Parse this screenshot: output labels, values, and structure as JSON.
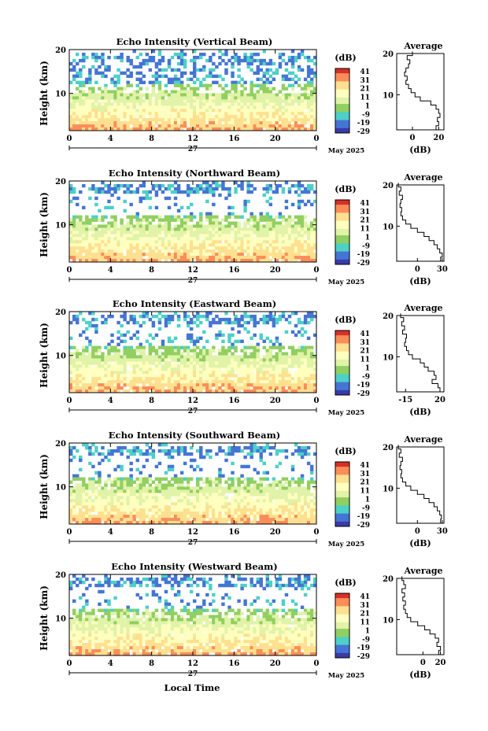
{
  "figure": {
    "footer_xlabel": "Local Time",
    "month_label": "May 2025",
    "day_label": "27",
    "colorbar_unit": "(dB)",
    "colorbar_ticks": [
      "41",
      "31",
      "21",
      "11",
      "1",
      "-9",
      "-19",
      "-29"
    ],
    "colorbar_colors": [
      "#d73027",
      "#fc8d59",
      "#fee090",
      "#ffffbf",
      "#e0f3a8",
      "#91cf60",
      "#4dd0c8",
      "#4575d4",
      "#3a3aa8"
    ],
    "height_label": "Height (km)",
    "avg_title": "Average",
    "avg_xlabel": "(dB)"
  },
  "chart_data": [
    {
      "type": "heatmap",
      "title": "Echo Intensity (Vertical Beam)",
      "ylabel": "Height (km)",
      "x_ticks": [
        "0",
        "4",
        "8",
        "12",
        "16",
        "20",
        "0"
      ],
      "xlim": [
        0,
        24
      ],
      "ylim": [
        1.5,
        20
      ],
      "y_ticks": [
        "20",
        "10"
      ],
      "colorbar_range_dB": [
        -29,
        41
      ],
      "average_profile": {
        "x_ticks": [
          "0",
          "20"
        ],
        "xlim": [
          -12,
          24
        ],
        "heights_km": [
          2,
          3,
          4,
          5,
          6,
          7,
          8,
          9,
          10,
          11,
          12,
          13,
          14,
          15,
          16,
          17,
          18,
          19,
          20
        ],
        "values_dB": [
          18,
          20,
          19,
          21,
          20,
          18,
          14,
          6,
          2,
          -1,
          -3,
          -5,
          -4,
          -6,
          -5,
          -3,
          -2,
          -4,
          0
        ]
      }
    },
    {
      "type": "heatmap",
      "title": "Echo Intensity (Northward Beam)",
      "ylabel": "Height (km)",
      "x_ticks": [
        "0",
        "4",
        "8",
        "12",
        "16",
        "20",
        "0"
      ],
      "xlim": [
        0,
        24
      ],
      "ylim": [
        1.5,
        20
      ],
      "y_ticks": [
        "20",
        "10"
      ],
      "colorbar_range_dB": [
        -29,
        41
      ],
      "average_profile": {
        "x_ticks": [
          "0",
          "30"
        ],
        "xlim": [
          -25,
          32
        ],
        "heights_km": [
          2,
          3,
          4,
          5,
          6,
          7,
          8,
          9,
          10,
          11,
          12,
          13,
          14,
          15,
          16,
          17,
          18,
          19,
          20
        ],
        "values_dB": [
          28,
          30,
          27,
          24,
          20,
          14,
          8,
          0,
          -8,
          -14,
          -18,
          -20,
          -19,
          -21,
          -20,
          -18,
          -22,
          -20,
          -23
        ]
      }
    },
    {
      "type": "heatmap",
      "title": "Echo Intensity (Eastward Beam)",
      "ylabel": "Height (km)",
      "x_ticks": [
        "0",
        "4",
        "8",
        "12",
        "16",
        "20",
        "0"
      ],
      "xlim": [
        0,
        24
      ],
      "ylim": [
        1.5,
        20
      ],
      "y_ticks": [
        "20",
        "10"
      ],
      "colorbar_range_dB": [
        -29,
        41
      ],
      "average_profile": {
        "x_ticks": [
          "-15",
          "20"
        ],
        "xlim": [
          -24,
          24
        ],
        "heights_km": [
          2,
          3,
          4,
          5,
          6,
          7,
          8,
          9,
          10,
          11,
          12,
          13,
          14,
          15,
          16,
          17,
          18,
          19,
          20
        ],
        "values_dB": [
          20,
          18,
          12,
          16,
          14,
          8,
          4,
          0,
          -8,
          -12,
          -14,
          -16,
          -15,
          -14,
          -18,
          -16,
          -19,
          -17,
          -20
        ]
      }
    },
    {
      "type": "heatmap",
      "title": "Echo Intensity (Southward Beam)",
      "ylabel": "Height (km)",
      "x_ticks": [
        "0",
        "4",
        "8",
        "12",
        "16",
        "20",
        "0"
      ],
      "xlim": [
        0,
        24
      ],
      "ylim": [
        1.5,
        20
      ],
      "y_ticks": [
        "20",
        "10"
      ],
      "colorbar_range_dB": [
        -29,
        41
      ],
      "average_profile": {
        "x_ticks": [
          "0",
          "30"
        ],
        "xlim": [
          -25,
          32
        ],
        "heights_km": [
          2,
          3,
          4,
          5,
          6,
          7,
          8,
          9,
          10,
          11,
          12,
          13,
          14,
          15,
          16,
          17,
          18,
          19,
          20
        ],
        "values_dB": [
          28,
          29,
          27,
          24,
          20,
          14,
          8,
          0,
          -8,
          -14,
          -18,
          -20,
          -19,
          -21,
          -20,
          -18,
          -22,
          -20,
          -23
        ]
      }
    },
    {
      "type": "heatmap",
      "title": "Echo Intensity (Westward Beam)",
      "ylabel": "Height (km)",
      "x_ticks": [
        "0",
        "4",
        "8",
        "12",
        "16",
        "20",
        "0"
      ],
      "xlim": [
        0,
        24
      ],
      "ylim": [
        1.5,
        20
      ],
      "y_ticks": [
        "20",
        "10"
      ],
      "colorbar_range_dB": [
        -29,
        41
      ],
      "average_profile": {
        "x_ticks": [
          "0",
          "20"
        ],
        "xlim": [
          -30,
          24
        ],
        "heights_km": [
          2,
          3,
          4,
          5,
          6,
          7,
          8,
          9,
          10,
          11,
          12,
          13,
          14,
          15,
          16,
          17,
          18,
          19,
          20
        ],
        "values_dB": [
          18,
          20,
          16,
          18,
          14,
          8,
          2,
          -6,
          -14,
          -18,
          -20,
          -22,
          -20,
          -23,
          -21,
          -24,
          -20,
          -22,
          -24
        ]
      }
    }
  ]
}
